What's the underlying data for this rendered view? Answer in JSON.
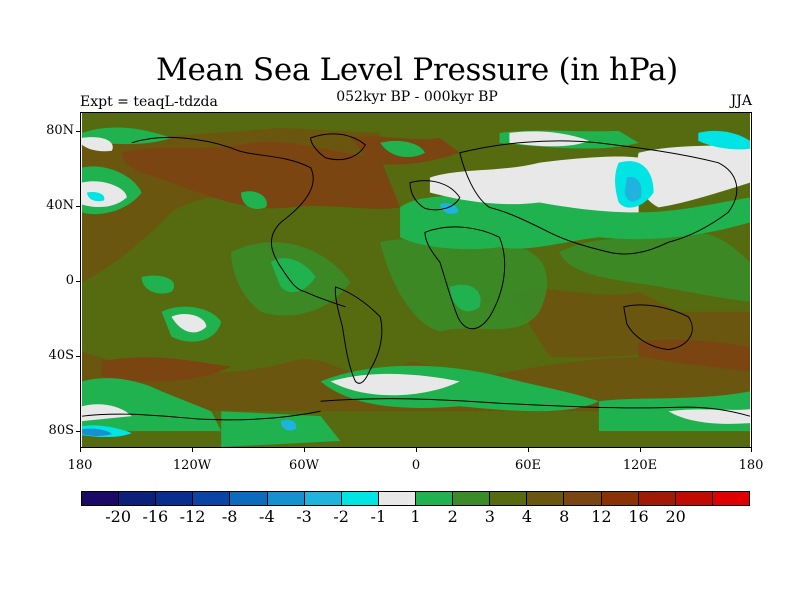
{
  "header": {
    "title": "Mean Sea Level Pressure (in hPa)",
    "subtitle": "052kyr BP - 000kyr BP",
    "experiment": "Expt = teaqL-tdzda",
    "season": "JJA"
  },
  "map": {
    "lat_labels": [
      "80N",
      "40N",
      "0",
      "40S",
      "80S"
    ],
    "lon_labels": [
      "180",
      "120W",
      "60W",
      "0",
      "60E",
      "120E",
      "180"
    ]
  },
  "colorbar": {
    "colors": [
      "#1a0a66",
      "#0c1f7a",
      "#0a2e8f",
      "#0a45a5",
      "#0d6bbf",
      "#1790d0",
      "#1fb3dd",
      "#00e4e4",
      "#e8e8e8",
      "#20b24e",
      "#3a8c28",
      "#566b0f",
      "#6b560f",
      "#7a4510",
      "#8a3205",
      "#a01a05",
      "#c00b03",
      "#e00000"
    ],
    "labels": [
      "-20",
      "-16",
      "-12",
      "-8",
      "-4",
      "-3",
      "-2",
      "-1",
      "1",
      "2",
      "3",
      "4",
      "8",
      "12",
      "16",
      "20"
    ]
  }
}
